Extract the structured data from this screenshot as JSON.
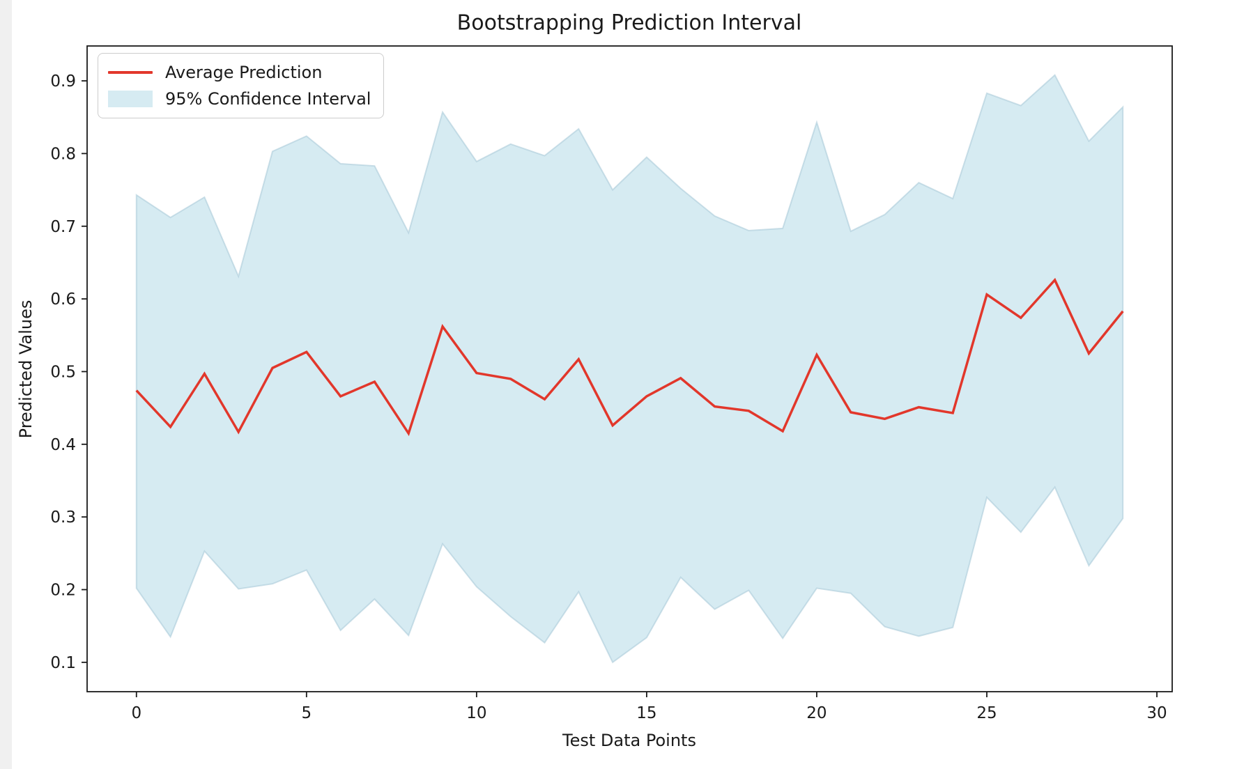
{
  "figure": {
    "background": "#ffffff",
    "left_strip_color": "#f0f0f0",
    "frame_color": "#1a1a1a"
  },
  "chart_data": {
    "type": "line",
    "title": "Bootstrapping Prediction Interval",
    "xlabel": "Test Data Points",
    "ylabel": "Predicted Values",
    "grid": false,
    "legend_position": "upper left",
    "xlim": [
      -1.45,
      30.45
    ],
    "ylim": [
      0.0596,
      0.948
    ],
    "xticks": [
      0,
      5,
      10,
      15,
      20,
      25,
      30
    ],
    "yticks": [
      0.1,
      0.2,
      0.3,
      0.4,
      0.5,
      0.6,
      0.7,
      0.8,
      0.9
    ],
    "x": [
      0,
      1,
      2,
      3,
      4,
      5,
      6,
      7,
      8,
      9,
      10,
      11,
      12,
      13,
      14,
      15,
      16,
      17,
      18,
      19,
      20,
      21,
      22,
      23,
      24,
      25,
      26,
      27,
      28,
      29
    ],
    "series": [
      {
        "name": "Average Prediction",
        "type": "line",
        "color": "#e2372b",
        "values": [
          0.474,
          0.424,
          0.497,
          0.417,
          0.505,
          0.527,
          0.466,
          0.486,
          0.415,
          0.562,
          0.498,
          0.49,
          0.462,
          0.517,
          0.426,
          0.466,
          0.491,
          0.452,
          0.446,
          0.418,
          0.523,
          0.444,
          0.435,
          0.451,
          0.443,
          0.606,
          0.574,
          0.626,
          0.525,
          0.583
        ]
      },
      {
        "name": "95% Confidence Interval",
        "type": "band",
        "color": "#add8e6",
        "alpha": 0.5,
        "edge": "#a0c3d4",
        "upper": [
          0.743,
          0.712,
          0.74,
          0.631,
          0.803,
          0.824,
          0.786,
          0.783,
          0.691,
          0.857,
          0.789,
          0.813,
          0.797,
          0.834,
          0.75,
          0.795,
          0.752,
          0.714,
          0.694,
          0.697,
          0.843,
          0.693,
          0.716,
          0.76,
          0.738,
          0.883,
          0.866,
          0.908,
          0.817,
          0.864
        ],
        "lower": [
          0.202,
          0.135,
          0.253,
          0.201,
          0.208,
          0.227,
          0.144,
          0.187,
          0.137,
          0.263,
          0.204,
          0.163,
          0.127,
          0.197,
          0.1,
          0.134,
          0.217,
          0.173,
          0.199,
          0.133,
          0.202,
          0.195,
          0.149,
          0.136,
          0.148,
          0.327,
          0.279,
          0.341,
          0.233,
          0.298
        ]
      }
    ]
  }
}
